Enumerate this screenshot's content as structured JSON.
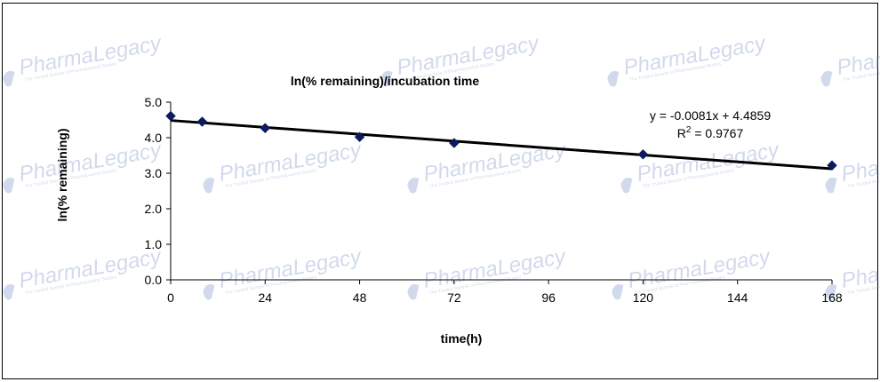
{
  "watermark": {
    "brand_a": "Pharma",
    "brand_b": "Legacy",
    "tagline": "The Trusted Sample of Pharmaceutical Studies"
  },
  "chart_data": {
    "type": "scatter",
    "title": "ln(% remaining)/incubation time",
    "xlabel": "time(h)",
    "ylabel": "ln(% remaining)",
    "xlim": [
      0,
      168
    ],
    "ylim": [
      0,
      5
    ],
    "x_ticks": [
      "0",
      "24",
      "48",
      "72",
      "96",
      "120",
      "144",
      "168"
    ],
    "x_tick_values": [
      0,
      24,
      48,
      72,
      96,
      120,
      144,
      168
    ],
    "y_ticks": [
      "0.0",
      "1.0",
      "2.0",
      "3.0",
      "4.0",
      "5.0"
    ],
    "y_tick_values": [
      0,
      1,
      2,
      3,
      4,
      5
    ],
    "grid": false,
    "series": [
      {
        "x": [
          0,
          8,
          24,
          48,
          72,
          120,
          168
        ],
        "y": [
          4.61,
          4.45,
          4.27,
          4.02,
          3.85,
          3.53,
          3.22
        ],
        "marker": "diamond",
        "color": "#0d1a5e"
      }
    ],
    "trendline": {
      "slope": -0.0081,
      "intercept": 4.4859,
      "equation": "y = -0.0081x + 4.4859",
      "r2_prefix": "R",
      "r2_exp": "2",
      "r2_value": " = 0.9767",
      "color": "#000000"
    }
  }
}
